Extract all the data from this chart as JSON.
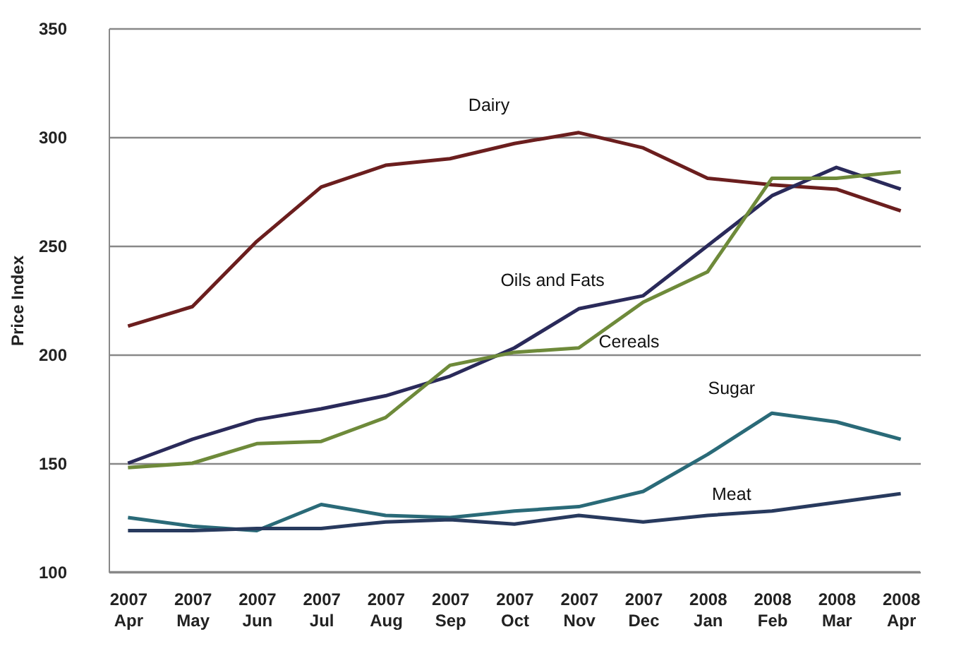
{
  "chart_data": {
    "type": "line",
    "ylabel": "Price Index",
    "categories": [
      "2007 Apr",
      "2007 May",
      "2007 Jun",
      "2007 Jul",
      "2007 Aug",
      "2007 Sep",
      "2007 Oct",
      "2007 Nov",
      "2007 Dec",
      "2008 Jan",
      "2008 Feb",
      "2008 Mar",
      "2008 Apr"
    ],
    "series": [
      {
        "name": "Dairy",
        "color": "#6b1e1e",
        "values": [
          213,
          222,
          252,
          277,
          287,
          290,
          297,
          302,
          295,
          281,
          278,
          276,
          266
        ]
      },
      {
        "name": "Oils and Fats",
        "color": "#2a2a5a",
        "values": [
          150,
          161,
          170,
          175,
          181,
          190,
          203,
          221,
          227,
          250,
          273,
          286,
          276
        ]
      },
      {
        "name": "Cereals",
        "color": "#6e8a3a",
        "values": [
          148,
          150,
          159,
          160,
          171,
          195,
          201,
          203,
          224,
          238,
          281,
          281,
          284
        ]
      },
      {
        "name": "Sugar",
        "color": "#2a6a78",
        "values": [
          125,
          121,
          119,
          131,
          126,
          125,
          128,
          130,
          137,
          154,
          173,
          169,
          161
        ]
      },
      {
        "name": "Meat",
        "color": "#283a5e",
        "values": [
          119,
          119,
          120,
          120,
          123,
          124,
          122,
          126,
          123,
          126,
          128,
          132,
          136
        ]
      }
    ],
    "ylim": [
      100,
      350
    ],
    "yticks": [
      100,
      150,
      200,
      250,
      300,
      350
    ],
    "grid": "y",
    "legend": false,
    "marker": "none",
    "line_style": "solid"
  }
}
